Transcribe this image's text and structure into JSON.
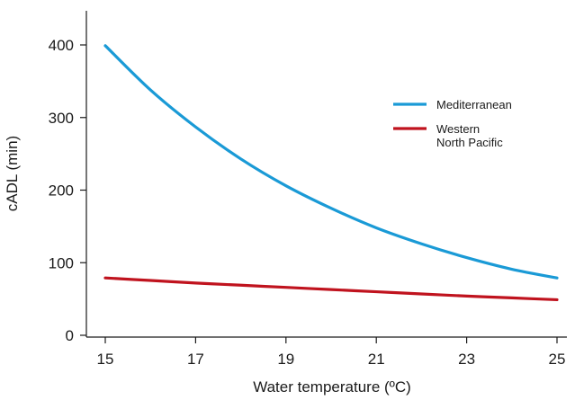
{
  "chart_data": {
    "type": "line",
    "title": "",
    "xlabel": "Water temperature (ºC)",
    "ylabel": "cADL (min)",
    "xlim": [
      15,
      25
    ],
    "ylim": [
      0,
      400
    ],
    "xticks": [
      15,
      17,
      19,
      21,
      23,
      25
    ],
    "yticks": [
      0,
      100,
      200,
      300,
      400
    ],
    "grid": false,
    "legend_position": "top-right",
    "series": [
      {
        "name": "Mediterranean",
        "color": "#1a9ad6",
        "x": [
          15,
          16,
          17,
          18,
          19,
          20,
          21,
          22,
          23,
          24,
          25
        ],
        "y": [
          399,
          338,
          287,
          243,
          206,
          175,
          148,
          126,
          107,
          91,
          79
        ]
      },
      {
        "name": "Western North Pacific",
        "name_lines": [
          "Western",
          "North Pacific"
        ],
        "color": "#c0131e",
        "x": [
          15,
          16,
          17,
          18,
          19,
          20,
          21,
          22,
          23,
          24,
          25
        ],
        "y": [
          79,
          75.5,
          72,
          69,
          66,
          63,
          60,
          57,
          54,
          51.5,
          49
        ]
      }
    ]
  }
}
